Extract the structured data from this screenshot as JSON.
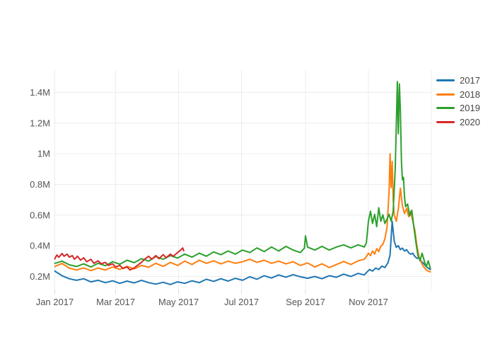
{
  "figure": {
    "background": "#ffffff",
    "plot_background": "#ffffff",
    "grid_color": "#ececec",
    "tick_mark_color": "#d9d9d9",
    "tick_label_color": "#555555",
    "legend_label_color": "#444444"
  },
  "chart_data": {
    "type": "line",
    "title": "",
    "xlabel": "",
    "ylabel": "",
    "grid": true,
    "legend_position": "top-right",
    "x_axis": {
      "unit": "day-of-year",
      "range": [
        0,
        366
      ],
      "ticks": [
        {
          "label": "Jan 2017",
          "doy": 1
        },
        {
          "label": "Mar 2017",
          "doy": 60
        },
        {
          "label": "May 2017",
          "doy": 121
        },
        {
          "label": "Jul 2017",
          "doy": 182
        },
        {
          "label": "Sep 2017",
          "doy": 244
        },
        {
          "label": "Nov 2017",
          "doy": 305
        }
      ],
      "extra_gridline_doys": [
        366
      ]
    },
    "y_axis": {
      "unit": "millions",
      "range": [
        0.11,
        1.545
      ],
      "ticks": [
        {
          "label": "0.2M",
          "value": 0.2
        },
        {
          "label": "0.4M",
          "value": 0.4
        },
        {
          "label": "0.6M",
          "value": 0.6
        },
        {
          "label": "0.8M",
          "value": 0.8
        },
        {
          "label": "1M",
          "value": 1.0
        },
        {
          "label": "1.2M",
          "value": 1.2
        },
        {
          "label": "1.4M",
          "value": 1.4
        }
      ]
    },
    "series": [
      {
        "name": "2017",
        "color": "#1f77b4",
        "x": [
          1,
          8,
          15,
          22,
          29,
          36,
          43,
          50,
          57,
          64,
          71,
          78,
          85,
          92,
          99,
          106,
          113,
          120,
          127,
          134,
          141,
          148,
          155,
          162,
          169,
          176,
          183,
          190,
          197,
          204,
          211,
          218,
          225,
          232,
          239,
          246,
          253,
          260,
          267,
          274,
          281,
          288,
          295,
          301,
          303,
          306,
          309,
          312,
          315,
          318,
          321,
          324,
          326,
          328,
          330,
          332,
          334,
          336,
          338,
          340,
          342,
          344,
          346,
          348,
          350,
          352,
          354,
          356,
          358,
          360,
          362,
          365
        ],
        "y_millions": [
          0.235,
          0.205,
          0.185,
          0.175,
          0.185,
          0.165,
          0.175,
          0.16,
          0.172,
          0.155,
          0.17,
          0.158,
          0.175,
          0.16,
          0.15,
          0.162,
          0.148,
          0.165,
          0.155,
          0.172,
          0.16,
          0.182,
          0.168,
          0.185,
          0.17,
          0.188,
          0.175,
          0.198,
          0.182,
          0.205,
          0.19,
          0.21,
          0.195,
          0.212,
          0.198,
          0.188,
          0.2,
          0.185,
          0.205,
          0.195,
          0.215,
          0.2,
          0.22,
          0.21,
          0.225,
          0.245,
          0.235,
          0.255,
          0.245,
          0.268,
          0.258,
          0.29,
          0.34,
          0.56,
          0.43,
          0.39,
          0.4,
          0.375,
          0.385,
          0.365,
          0.375,
          0.355,
          0.345,
          0.352,
          0.33,
          0.318,
          0.322,
          0.3,
          0.288,
          0.272,
          0.258,
          0.245
        ]
      },
      {
        "name": "2018",
        "color": "#ff7f0e",
        "x": [
          1,
          8,
          15,
          22,
          29,
          36,
          43,
          50,
          57,
          64,
          71,
          78,
          85,
          92,
          99,
          106,
          113,
          120,
          127,
          134,
          141,
          148,
          155,
          162,
          169,
          176,
          183,
          190,
          197,
          204,
          211,
          218,
          225,
          232,
          239,
          246,
          253,
          260,
          267,
          274,
          281,
          288,
          295,
          301,
          303,
          305,
          307,
          309,
          311,
          313,
          315,
          317,
          319,
          321,
          323,
          325,
          326,
          327,
          328,
          329,
          330,
          332,
          334,
          336,
          338,
          340,
          342,
          344,
          346,
          348,
          350,
          352,
          354,
          356,
          358,
          360,
          362,
          365
        ],
        "y_millions": [
          0.265,
          0.285,
          0.255,
          0.242,
          0.256,
          0.238,
          0.255,
          0.242,
          0.262,
          0.246,
          0.266,
          0.25,
          0.272,
          0.26,
          0.286,
          0.266,
          0.292,
          0.272,
          0.3,
          0.278,
          0.306,
          0.286,
          0.302,
          0.282,
          0.3,
          0.286,
          0.296,
          0.312,
          0.292,
          0.306,
          0.286,
          0.3,
          0.282,
          0.296,
          0.272,
          0.288,
          0.262,
          0.282,
          0.258,
          0.278,
          0.298,
          0.278,
          0.302,
          0.312,
          0.33,
          0.352,
          0.336,
          0.366,
          0.346,
          0.382,
          0.362,
          0.396,
          0.41,
          0.445,
          0.52,
          0.75,
          1.0,
          0.78,
          0.95,
          0.7,
          0.6,
          0.56,
          0.64,
          0.775,
          0.66,
          0.61,
          0.645,
          0.59,
          0.625,
          0.56,
          0.5,
          0.4,
          0.33,
          0.295,
          0.268,
          0.25,
          0.238,
          0.23
        ]
      },
      {
        "name": "2019",
        "color": "#2ca02c",
        "x": [
          1,
          8,
          15,
          22,
          29,
          36,
          43,
          50,
          57,
          64,
          71,
          78,
          85,
          92,
          99,
          106,
          113,
          120,
          127,
          134,
          141,
          148,
          155,
          162,
          169,
          176,
          183,
          190,
          197,
          204,
          211,
          218,
          225,
          232,
          239,
          243,
          244,
          246,
          253,
          260,
          267,
          274,
          281,
          288,
          295,
          301,
          303,
          305,
          307,
          309,
          311,
          313,
          315,
          317,
          319,
          321,
          323,
          325,
          327,
          329,
          331,
          332,
          333,
          334,
          335,
          336,
          337,
          338,
          339,
          340,
          341,
          343,
          345,
          347,
          349,
          351,
          353,
          355,
          357,
          359,
          361,
          363,
          365
        ],
        "y_millions": [
          0.285,
          0.3,
          0.276,
          0.265,
          0.282,
          0.262,
          0.286,
          0.27,
          0.296,
          0.28,
          0.306,
          0.29,
          0.316,
          0.3,
          0.33,
          0.312,
          0.336,
          0.32,
          0.346,
          0.326,
          0.352,
          0.332,
          0.36,
          0.342,
          0.366,
          0.346,
          0.372,
          0.356,
          0.386,
          0.362,
          0.392,
          0.366,
          0.396,
          0.372,
          0.356,
          0.385,
          0.465,
          0.392,
          0.372,
          0.396,
          0.372,
          0.392,
          0.406,
          0.386,
          0.406,
          0.392,
          0.42,
          0.56,
          0.625,
          0.545,
          0.605,
          0.525,
          0.648,
          0.56,
          0.602,
          0.545,
          0.575,
          0.605,
          0.56,
          0.625,
          0.9,
          1.18,
          1.47,
          1.13,
          1.455,
          1.28,
          0.95,
          0.83,
          0.845,
          0.715,
          0.655,
          0.672,
          0.595,
          0.632,
          0.525,
          0.425,
          0.335,
          0.302,
          0.352,
          0.305,
          0.262,
          0.302,
          0.252
        ]
      },
      {
        "name": "2020",
        "color": "#d62728",
        "x": [
          1,
          3,
          5,
          8,
          10,
          13,
          15,
          18,
          20,
          23,
          26,
          29,
          32,
          36,
          39,
          43,
          46,
          50,
          53,
          57,
          60,
          64,
          67,
          71,
          74,
          78,
          81,
          85,
          88,
          92,
          95,
          99,
          102,
          106,
          109,
          113,
          116,
          120,
          123,
          125,
          126
        ],
        "y_millions": [
          0.315,
          0.34,
          0.325,
          0.35,
          0.332,
          0.346,
          0.326,
          0.336,
          0.312,
          0.332,
          0.306,
          0.322,
          0.296,
          0.312,
          0.286,
          0.302,
          0.282,
          0.292,
          0.272,
          0.282,
          0.262,
          0.272,
          0.252,
          0.262,
          0.242,
          0.256,
          0.272,
          0.292,
          0.312,
          0.332,
          0.312,
          0.336,
          0.316,
          0.342,
          0.322,
          0.346,
          0.332,
          0.356,
          0.372,
          0.386,
          0.368
        ]
      }
    ]
  }
}
